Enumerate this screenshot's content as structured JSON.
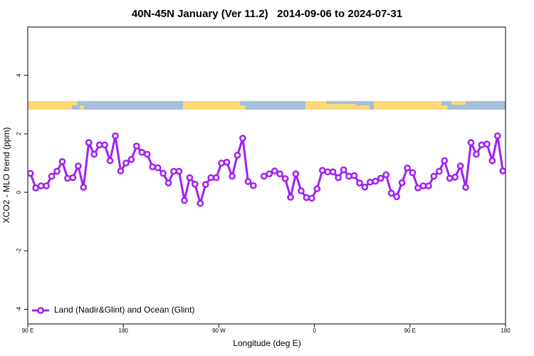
{
  "chart_data": {
    "type": "line",
    "title": "40N-45N January (Ver 11.2)   2014-09-06 to 2024-07-31",
    "xlabel": "Longitude (deg E)",
    "ylabel": "XCO2 - MLO trend (ppm)",
    "xlim": [
      90,
      540
    ],
    "xticks": [
      {
        "value": 90,
        "label": "90 E"
      },
      180,
      {
        "value": 270,
        "label": "90 W"
      },
      {
        "value": 360,
        "label": "0"
      },
      {
        "value": 450,
        "label": "90 E"
      },
      {
        "value": 540,
        "label": "180"
      }
    ],
    "ylim": [
      -4.5,
      5.65
    ],
    "yticks": [
      -4,
      -2,
      0,
      2,
      4
    ],
    "legend": "bottom-left",
    "x": [
      92.5,
      97.5,
      102.5,
      107.5,
      112.5,
      117.5,
      122.5,
      127.5,
      132.5,
      137.5,
      142.5,
      147.5,
      152.5,
      157.5,
      162.5,
      167.5,
      172.5,
      177.5,
      182.5,
      187.5,
      192.5,
      197.5,
      202.5,
      207.5,
      212.5,
      217.5,
      222.5,
      227.5,
      232.5,
      237.5,
      242.5,
      247.5,
      252.5,
      257.5,
      262.5,
      267.5,
      272.5,
      277.5,
      282.5,
      287.5,
      292.5,
      297.5,
      302.5,
      307.5,
      312.5,
      317.5,
      322.5,
      327.5,
      332.5,
      337.5,
      342.5,
      347.5,
      352.5,
      357.5,
      362.5,
      367.5,
      372.5,
      377.5,
      382.5,
      387.5,
      392.5,
      397.5,
      402.5,
      407.5,
      412.5,
      417.5,
      422.5,
      427.5,
      432.5,
      437.5,
      442.5,
      447.5,
      452.5,
      457.5,
      462.5,
      467.5,
      472.5,
      477.5,
      482.5,
      487.5,
      492.5,
      497.5,
      502.5,
      507.5,
      512.5,
      517.5,
      522.5,
      527.5,
      532.5,
      537.5
    ],
    "series": [
      {
        "name": "Land (Nadir&Glint) and Ocean (Glint)",
        "color": "#a020f0",
        "values": [
          0.65,
          0.15,
          0.22,
          0.22,
          0.55,
          0.72,
          1.05,
          0.48,
          0.5,
          0.9,
          0.17,
          1.7,
          1.3,
          1.62,
          1.62,
          1.08,
          1.93,
          0.73,
          1.0,
          1.12,
          1.58,
          1.37,
          1.3,
          0.87,
          0.84,
          0.65,
          0.32,
          0.72,
          0.72,
          -0.28,
          0.5,
          0.28,
          -0.38,
          0.27,
          0.5,
          0.5,
          1.0,
          1.03,
          0.55,
          1.27,
          1.85,
          0.37,
          0.23,
          null,
          0.55,
          0.63,
          0.73,
          0.63,
          0.47,
          -0.17,
          0.63,
          0.05,
          -0.18,
          -0.2,
          0.12,
          0.75,
          0.7,
          0.7,
          0.5,
          0.77,
          0.55,
          0.57,
          0.32,
          0.18,
          0.35,
          0.38,
          0.48,
          0.6,
          -0.03,
          -0.15,
          0.33,
          0.83,
          0.67,
          0.15,
          0.22,
          0.22,
          0.55,
          0.72,
          1.08,
          0.48,
          0.52,
          0.9,
          0.17,
          1.7,
          1.3,
          1.62,
          1.65,
          1.08,
          1.93,
          0.73
        ]
      }
    ]
  }
}
